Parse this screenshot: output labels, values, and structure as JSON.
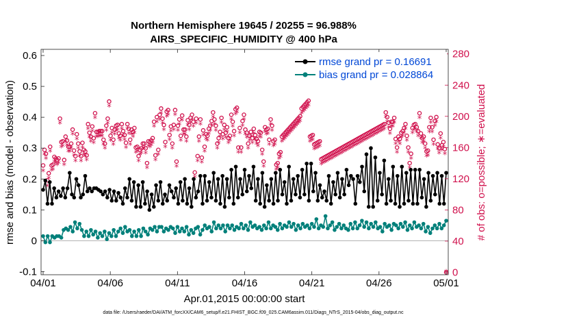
{
  "chart_data": {
    "type": "line",
    "title": "Northern Hemisphere 19645 / 20255 = 96.988%",
    "subtitle": "AIRS_SPECIFIC_HUMIDITY @ 400 hPa",
    "xlabel": "Apr.01,2015 00:00:00 start",
    "ylabel_left": "rmse and bias (model - observation)",
    "ylabel_right": "# of obs: o=possible; ∗=evaluated",
    "footer": "data file: /Users/raeder/DAI/ATM_forcXX/CAM6_setup/f.e21.FHIST_BGC.f09_025.CAM6assim.011/Diags_NTrS_2015-04/obs_diag_output.nc",
    "x_ticks": [
      "04/01",
      "04/06",
      "04/11",
      "04/16",
      "04/21",
      "04/26",
      "05/01"
    ],
    "x_tick_days": [
      0,
      5,
      10,
      15,
      20,
      25,
      30
    ],
    "x_range_days": [
      0,
      30
    ],
    "y_left_ticks": [
      "-0.1",
      "0",
      "0.1",
      "0.2",
      "0.3",
      "0.4",
      "0.5",
      "0.6"
    ],
    "y_left_range": [
      -0.11,
      0.62
    ],
    "y_right_ticks": [
      "0",
      "40",
      "80",
      "120",
      "160",
      "200",
      "240",
      "280"
    ],
    "y_right_range": [
      -3.1,
      285.9
    ],
    "legend_position": "top-right",
    "colors": {
      "rmse": "#000000",
      "bias": "#00807a",
      "obs": "#d0104c",
      "zero": "#b8b8b8",
      "legend_text": "#0047d6"
    },
    "series": [
      {
        "name": "rmse grand pr = 0.16691",
        "key": "rmse",
        "values": [
          0.165,
          0.195,
          0.12,
          0.19,
          0.12,
          0.17,
          0.14,
          0.16,
          0.145,
          0.17,
          0.14,
          0.17,
          0.22,
          0.15,
          0.14,
          0.2,
          0.18,
          0.14,
          0.15,
          0.21,
          0.16,
          0.17,
          0.16,
          0.17,
          0.17,
          0.165,
          0.16,
          0.15,
          0.16,
          0.14,
          0.165,
          0.13,
          0.16,
          0.13,
          0.155,
          0.14,
          0.12,
          0.17,
          0.14,
          0.2,
          0.13,
          0.19,
          0.11,
          0.18,
          0.11,
          0.19,
          0.12,
          0.16,
          0.1,
          0.15,
          0.11,
          0.18,
          0.13,
          0.19,
          0.12,
          0.15,
          0.13,
          0.18,
          0.16,
          0.14,
          0.17,
          0.12,
          0.19,
          0.13,
          0.2,
          0.12,
          0.17,
          0.11,
          0.2,
          0.14,
          0.16,
          0.21,
          0.12,
          0.21,
          0.13,
          0.19,
          0.14,
          0.22,
          0.13,
          0.2,
          0.12,
          0.21,
          0.11,
          0.2,
          0.14,
          0.23,
          0.12,
          0.24,
          0.14,
          0.2,
          0.15,
          0.23,
          0.16,
          0.21,
          0.17,
          0.24,
          0.13,
          0.2,
          0.12,
          0.22,
          0.11,
          0.18,
          0.13,
          0.2,
          0.12,
          0.22,
          0.13,
          0.23,
          0.15,
          0.19,
          0.12,
          0.24,
          0.13,
          0.2,
          0.15,
          0.21,
          0.14,
          0.23,
          0.15,
          0.25,
          0.13,
          0.25,
          0.16,
          0.22,
          0.13,
          0.18,
          0.14,
          0.16,
          0.13,
          0.21,
          0.12,
          0.19,
          0.15,
          0.22,
          0.14,
          0.2,
          0.15,
          0.23,
          0.18,
          0.21,
          0.2,
          0.12,
          0.21,
          0.19,
          0.24,
          0.16,
          0.28,
          0.11,
          0.3,
          0.11,
          0.27,
          0.13,
          0.22,
          0.15,
          0.26,
          0.12,
          0.2,
          0.13,
          0.24,
          0.12,
          0.21,
          0.11,
          0.24,
          0.12,
          0.22,
          0.13,
          0.23,
          0.12,
          0.23,
          0.12,
          0.23,
          0.14,
          0.2,
          0.11,
          0.22,
          0.13,
          0.21,
          0.15,
          0.22,
          0.12,
          0.21,
          0.12,
          0.22
        ]
      },
      {
        "name": "bias grand pr = 0.028864",
        "key": "bias",
        "values": [
          0.015,
          -0.005,
          0.015,
          -0.005,
          0.015,
          0.01,
          0.015,
          0.015,
          0.01,
          0.035,
          0.04,
          0.035,
          0.045,
          0.03,
          0.06,
          0.04,
          0.055,
          0.035,
          0.015,
          0.03,
          0.015,
          0.035,
          0.02,
          0.03,
          0.01,
          0.025,
          0.015,
          0.03,
          0.005,
          0.025,
          0.015,
          0.035,
          0.015,
          0.03,
          0.04,
          0.025,
          0.045,
          0.03,
          0.035,
          0.015,
          0.03,
          0.015,
          0.035,
          0.015,
          0.04,
          0.03,
          0.02,
          0.04,
          0.035,
          0.045,
          0.03,
          0.045,
          0.045,
          0.03,
          0.04,
          0.035,
          0.045,
          0.04,
          0.025,
          0.045,
          0.03,
          0.04,
          0.03,
          0.045,
          0.02,
          0.035,
          0.025,
          0.04,
          0.045,
          0.02,
          0.035,
          0.05,
          0.04,
          0.045,
          0.03,
          0.06,
          0.04,
          0.05,
          0.04,
          0.05,
          0.03,
          0.05,
          0.04,
          0.05,
          0.035,
          0.045,
          0.04,
          0.055,
          0.04,
          0.05,
          0.035,
          0.06,
          0.045,
          0.05,
          0.04,
          0.045,
          0.035,
          0.05,
          0.04,
          0.06,
          0.04,
          0.05,
          0.045,
          0.035,
          0.055,
          0.04,
          0.05,
          0.045,
          0.06,
          0.045,
          0.055,
          0.035,
          0.05,
          0.04,
          0.055,
          0.045,
          0.05,
          0.04,
          0.055,
          0.045,
          0.07,
          0.04,
          0.05,
          0.045,
          0.08,
          0.04,
          0.05,
          0.06,
          0.035,
          0.045,
          0.055,
          0.04,
          0.05,
          0.04,
          0.035,
          0.055,
          0.04,
          0.06,
          0.04,
          0.05,
          0.065,
          0.045,
          0.06,
          0.04,
          0.055,
          0.045,
          0.06,
          0.04,
          0.045,
          0.03,
          0.055,
          0.045,
          0.05,
          0.035,
          0.055,
          0.05,
          0.04,
          0.055,
          0.045,
          0.06,
          0.035,
          0.05,
          0.04,
          0.06,
          0.045,
          0.05,
          0.04,
          0.055,
          0.03,
          0.045,
          0.025,
          0.04,
          0.05,
          0.04,
          0.055,
          0.04,
          0.05,
          0.065
        ]
      },
      {
        "name": "# of obs (possible)",
        "key": "obs_possible",
        "values": [
          137,
          157,
          152,
          118,
          127,
          161,
          137,
          138,
          148,
          146,
          144,
          146,
          197,
          167,
          168,
          144,
          174,
          169,
          161,
          161,
          165,
          183,
          156,
          149,
          177,
          165,
          155,
          149,
          166,
          157,
          155,
          150,
          190,
          179,
          174,
          187,
          172,
          204,
          180,
          180,
          181,
          181,
          181,
          170,
          165,
          188,
          197,
          219,
          175,
          185,
          170,
          183,
          188,
          189,
          178,
          175,
          190,
          181,
          176,
          166,
          190,
          184,
          170,
          183,
          180,
          185,
          160,
          161,
          149,
          157,
          159,
          165,
          165,
          159,
          140,
          168,
          167,
          169,
          172,
          193,
          150,
          199,
          157,
          202,
          210,
          197,
          189,
          167,
          206,
          208,
          176,
          187,
          165,
          189,
          208,
          142,
          188,
          196,
          175,
          201,
          183,
          183,
          174,
          195,
          189,
          198,
          202,
          193,
          128,
          197,
          149,
          174,
          196,
          147,
          182,
          161,
          177,
          175,
          184,
          188,
          194,
          205,
          196,
          188,
          165,
          172,
          180,
          198,
          177,
          189,
          179,
          186,
          172,
          175,
          202,
          193,
          181,
          209,
          211,
          160,
          185,
          160,
          194,
          202,
          183,
          179,
          165,
          175,
          180,
          172,
          184,
          176,
          171,
          168,
          180,
          179,
          157,
          142,
          186,
          183,
          184,
          170,
          196,
          188,
          168,
          170,
          138,
          140,
          152,
          154,
          174,
          176,
          178,
          180,
          182,
          184,
          186,
          188,
          190,
          192,
          194,
          196,
          198,
          200,
          210,
          212,
          214,
          216,
          218,
          220,
          174,
          175,
          176,
          164,
          165,
          166,
          167,
          168,
          145,
          146,
          147,
          148,
          149,
          150,
          151,
          152,
          153,
          154,
          155,
          156,
          157,
          158,
          159,
          160,
          161,
          162,
          163,
          164,
          165,
          166,
          167,
          168,
          169,
          170,
          171,
          172,
          173,
          174,
          175,
          176,
          177,
          178,
          179,
          180,
          181,
          182,
          183,
          184,
          185,
          186,
          187,
          188,
          189,
          190,
          205,
          199,
          192,
          184,
          193,
          193,
          198,
          171,
          160,
          174,
          171,
          179,
          181,
          185,
          190,
          175,
          160,
          140,
          152,
          185,
          189,
          190,
          186,
          181,
          204,
          178,
          172,
          174,
          165,
          155,
          156,
          186,
          198,
          186,
          170,
          194,
          199,
          164,
          159,
          178,
          163,
          167,
          158,
          0
        ]
      },
      {
        "name": "# of obs (evaluated)",
        "key": "obs_evaluated",
        "values": [
          129,
          150,
          145,
          110,
          120,
          154,
          130,
          131,
          141,
          139,
          137,
          139,
          190,
          160,
          161,
          137,
          167,
          162,
          154,
          154,
          158,
          176,
          149,
          142,
          170,
          158,
          148,
          142,
          159,
          150,
          148,
          143,
          183,
          172,
          167,
          180,
          165,
          197,
          173,
          173,
          174,
          174,
          174,
          163,
          158,
          181,
          190,
          212,
          168,
          178,
          163,
          176,
          181,
          182,
          171,
          168,
          183,
          174,
          169,
          159,
          183,
          177,
          163,
          176,
          173,
          178,
          153,
          154,
          142,
          150,
          152,
          158,
          158,
          152,
          133,
          161,
          160,
          162,
          165,
          186,
          143,
          192,
          150,
          195,
          203,
          190,
          182,
          160,
          199,
          201,
          169,
          180,
          158,
          182,
          201,
          135,
          181,
          189,
          168,
          194,
          176,
          176,
          167,
          188,
          182,
          191,
          195,
          186,
          121,
          190,
          142,
          167,
          189,
          140,
          175,
          154,
          170,
          168,
          177,
          181,
          187,
          198,
          189,
          181,
          158,
          165,
          173,
          191,
          170,
          182,
          172,
          179,
          165,
          168,
          195,
          186,
          174,
          202,
          204,
          153,
          178,
          153,
          187,
          195,
          176,
          172,
          158,
          168,
          173,
          165,
          177,
          169,
          164,
          161,
          173,
          172,
          150,
          135,
          179,
          176,
          177,
          163,
          189,
          181,
          161,
          163,
          131,
          133,
          145,
          147,
          167,
          169,
          171,
          173,
          175,
          177,
          179,
          181,
          183,
          185,
          187,
          189,
          191,
          193,
          203,
          205,
          207,
          209,
          211,
          213,
          167,
          168,
          169,
          157,
          158,
          159,
          160,
          161,
          138,
          139,
          140,
          141,
          142,
          143,
          144,
          145,
          146,
          147,
          148,
          149,
          150,
          151,
          152,
          153,
          154,
          155,
          156,
          157,
          158,
          159,
          160,
          161,
          162,
          163,
          164,
          165,
          166,
          167,
          168,
          169,
          170,
          171,
          172,
          173,
          174,
          175,
          176,
          177,
          178,
          179,
          180,
          181,
          182,
          183,
          198,
          192,
          185,
          177,
          186,
          186,
          191,
          164,
          153,
          167,
          164,
          172,
          174,
          178,
          183,
          168,
          153,
          133,
          145,
          178,
          182,
          183,
          179,
          174,
          197,
          171,
          165,
          167,
          158,
          148,
          149,
          179,
          191,
          179,
          163,
          187,
          192,
          157,
          152,
          171,
          156,
          160,
          151,
          0
        ]
      }
    ]
  }
}
